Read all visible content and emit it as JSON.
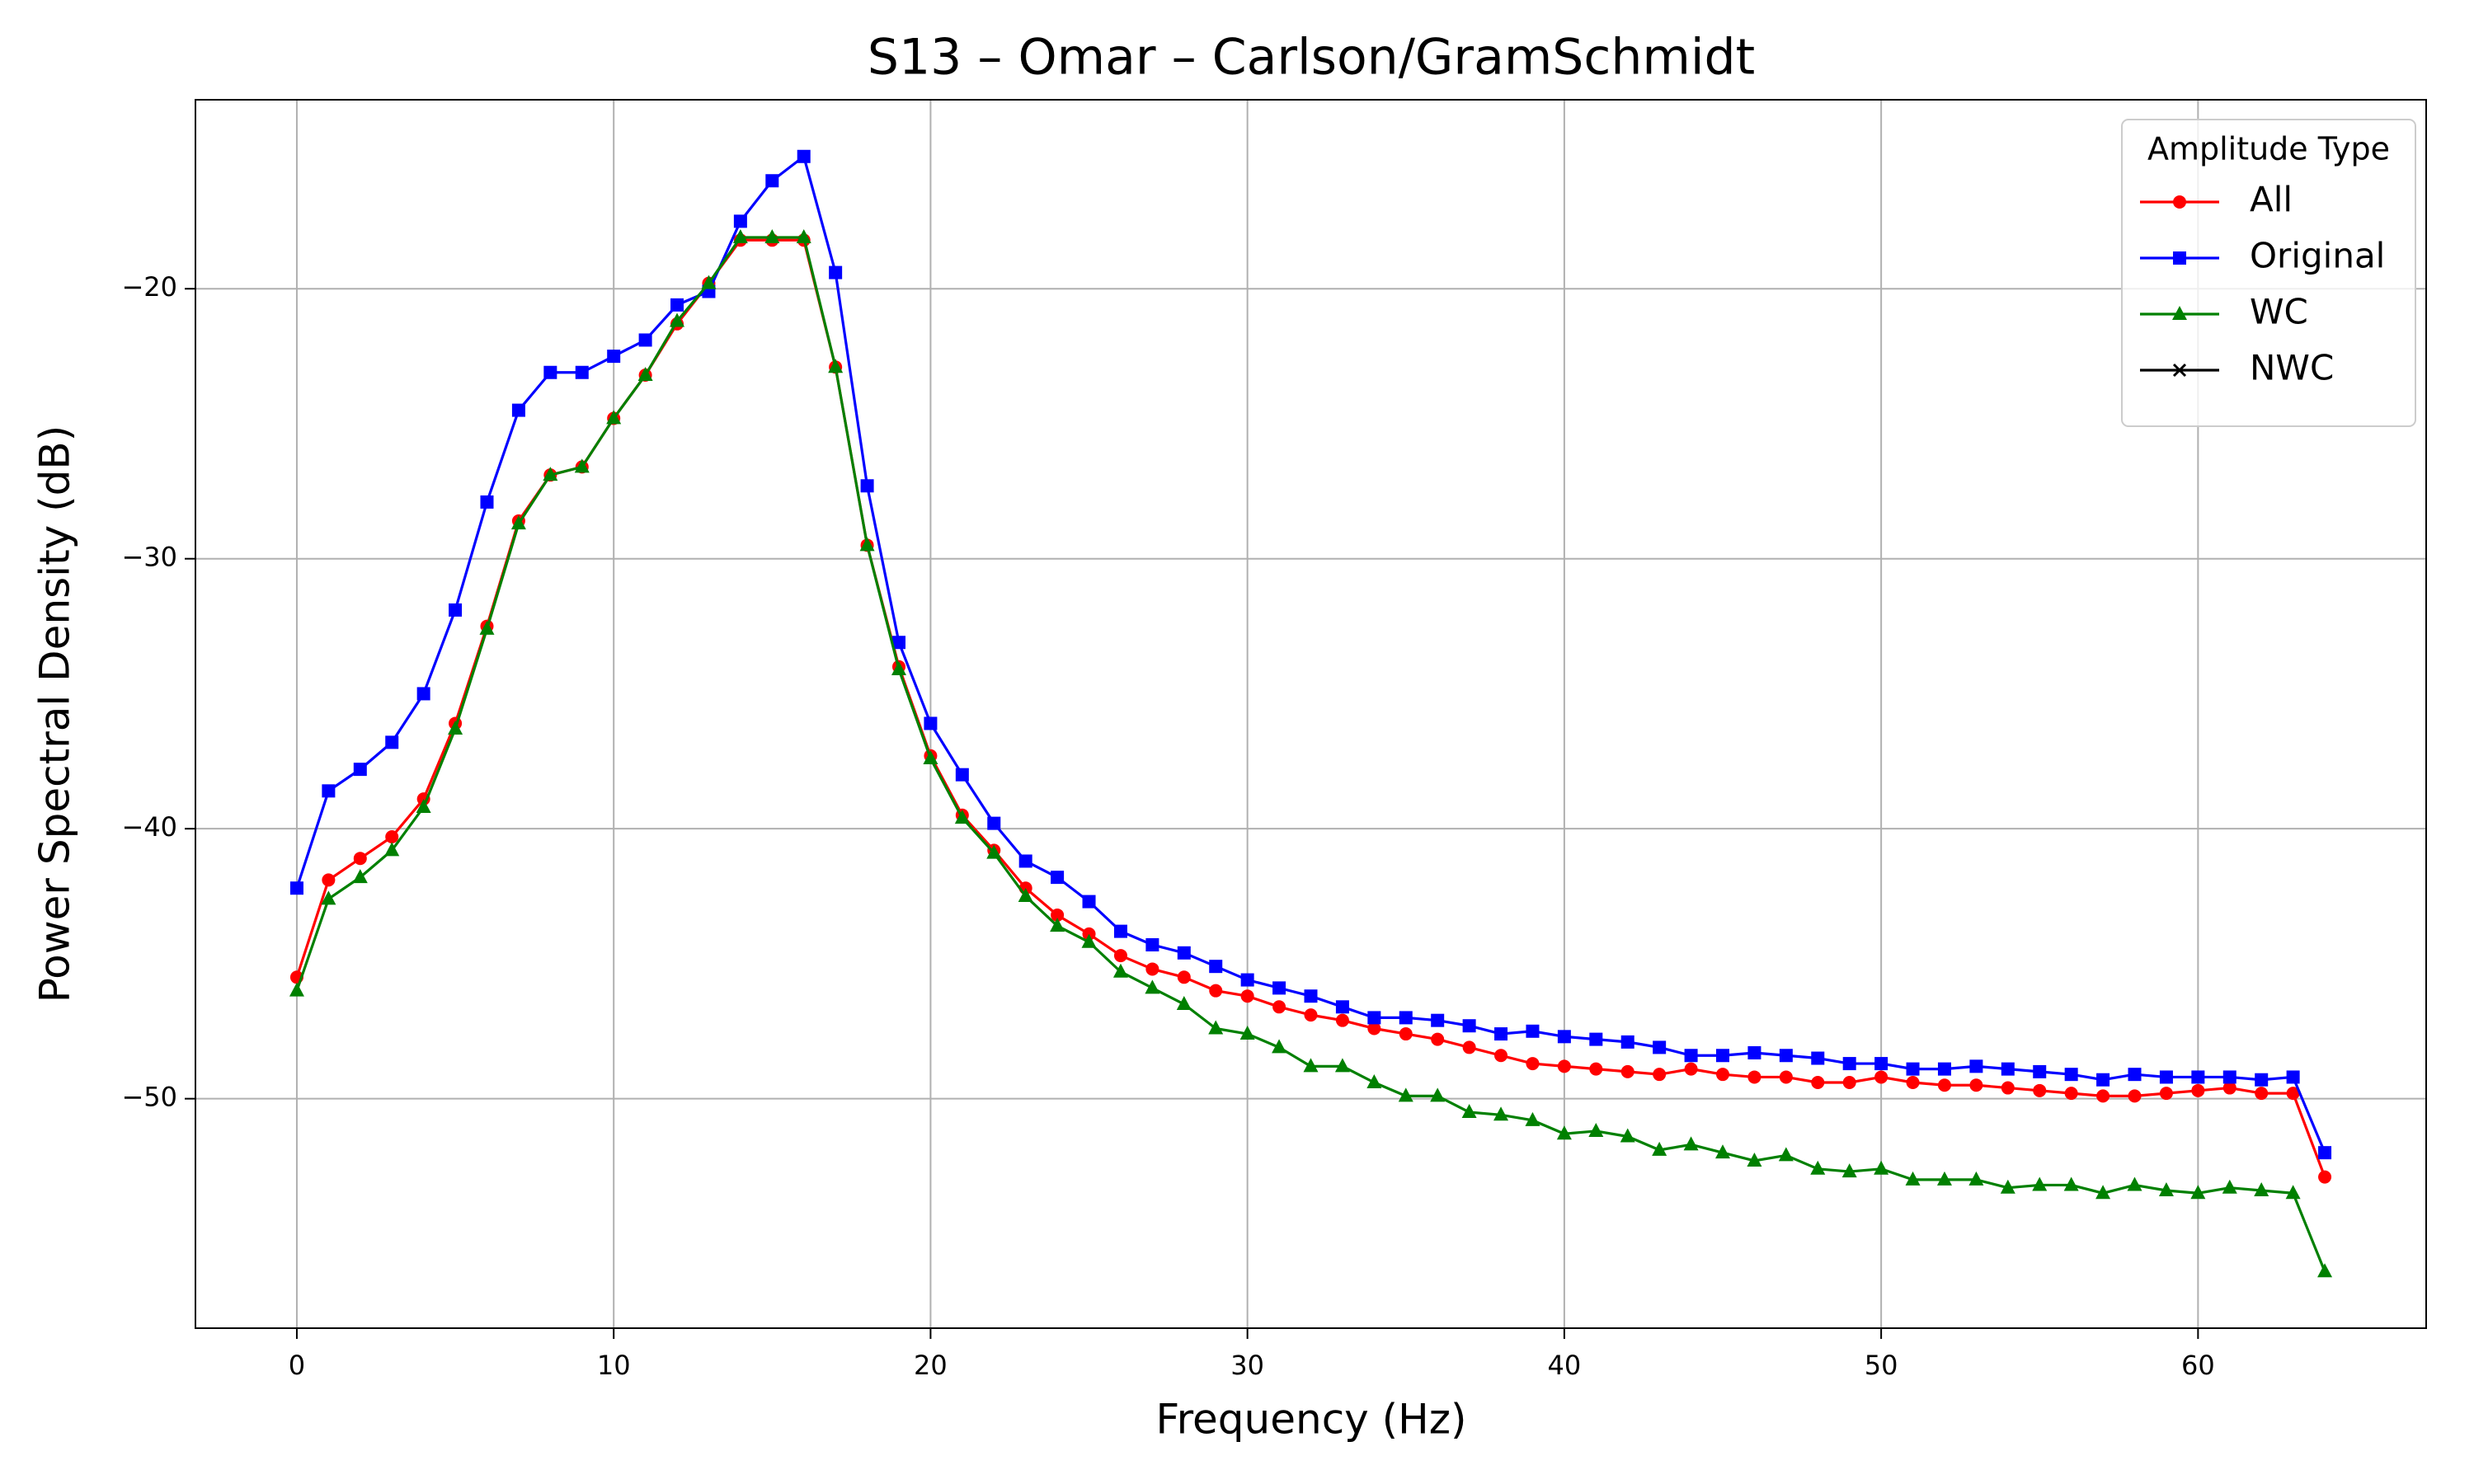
{
  "chart_data": {
    "type": "line",
    "title": "S13 – Omar – Carlson/GramSchmidt",
    "x_label": "Frequency (Hz)",
    "y_label": "Power Spectral Density (dB)",
    "x": [
      0,
      1,
      2,
      3,
      4,
      5,
      6,
      7,
      8,
      9,
      10,
      11,
      12,
      13,
      14,
      15,
      16,
      17,
      18,
      19,
      20,
      21,
      22,
      23,
      24,
      25,
      26,
      27,
      28,
      29,
      30,
      31,
      32,
      33,
      34,
      35,
      36,
      37,
      38,
      39,
      40,
      41,
      42,
      43,
      44,
      45,
      46,
      47,
      48,
      49,
      50,
      51,
      52,
      53,
      54,
      55,
      56,
      57,
      58,
      59,
      60,
      61,
      62,
      63,
      64
    ],
    "series": [
      {
        "name": "All",
        "color": "#ff0000",
        "marker": "o",
        "values": [
          -45.5,
          -41.9,
          -41.1,
          -40.3,
          -38.9,
          -36.1,
          -32.5,
          -28.6,
          -26.9,
          -26.6,
          -24.8,
          -23.2,
          -21.3,
          -19.8,
          -18.2,
          -18.2,
          -18.2,
          -22.9,
          -29.5,
          -34.0,
          -37.3,
          -39.5,
          -40.8,
          -42.2,
          -43.2,
          -43.9,
          -44.7,
          -45.2,
          -45.5,
          -46.0,
          -46.2,
          -46.6,
          -46.9,
          -47.1,
          -47.4,
          -47.6,
          -47.8,
          -48.1,
          -48.4,
          -48.7,
          -48.8,
          -48.9,
          -49.0,
          -49.1,
          -48.9,
          -49.1,
          -49.2,
          -49.2,
          -49.4,
          -49.4,
          -49.2,
          -49.4,
          -49.5,
          -49.5,
          -49.6,
          -49.7,
          -49.8,
          -49.9,
          -49.9,
          -49.8,
          -49.7,
          -49.6,
          -49.8,
          -49.8,
          -52.9
        ]
      },
      {
        "name": "Original",
        "color": "#0000ff",
        "marker": "s",
        "values": [
          -42.2,
          -38.6,
          -37.8,
          -36.8,
          -35.0,
          -31.9,
          -27.9,
          -24.5,
          -23.1,
          -23.1,
          -22.5,
          -21.9,
          -20.6,
          -20.1,
          -17.5,
          -16.0,
          -15.1,
          -19.4,
          -27.3,
          -33.1,
          -36.1,
          -38.0,
          -39.8,
          -41.2,
          -41.8,
          -42.7,
          -43.8,
          -44.3,
          -44.6,
          -45.1,
          -45.6,
          -45.9,
          -46.2,
          -46.6,
          -47.0,
          -47.0,
          -47.1,
          -47.3,
          -47.6,
          -47.5,
          -47.7,
          -47.8,
          -47.9,
          -48.1,
          -48.4,
          -48.4,
          -48.3,
          -48.4,
          -48.5,
          -48.7,
          -48.7,
          -48.9,
          -48.9,
          -48.8,
          -48.9,
          -49.0,
          -49.1,
          -49.3,
          -49.1,
          -49.2,
          -49.2,
          -49.2,
          -49.3,
          -49.2,
          -52.0
        ]
      },
      {
        "name": "WC",
        "color": "#008000",
        "marker": "^",
        "values": [
          -46.0,
          -42.6,
          -41.8,
          -40.8,
          -39.2,
          -36.3,
          -32.6,
          -28.7,
          -26.9,
          -26.6,
          -24.8,
          -23.2,
          -21.2,
          -19.8,
          -18.1,
          -18.1,
          -18.1,
          -22.9,
          -29.5,
          -34.1,
          -37.4,
          -39.6,
          -40.9,
          -42.5,
          -43.6,
          -44.2,
          -45.3,
          -45.9,
          -46.5,
          -47.4,
          -47.6,
          -48.1,
          -48.8,
          -48.8,
          -49.4,
          -49.9,
          -49.9,
          -50.5,
          -50.6,
          -50.8,
          -51.3,
          -51.2,
          -51.4,
          -51.9,
          -51.7,
          -52.0,
          -52.3,
          -52.1,
          -52.6,
          -52.7,
          -52.6,
          -53.0,
          -53.0,
          -53.0,
          -53.3,
          -53.2,
          -53.2,
          -53.5,
          -53.2,
          -53.4,
          -53.5,
          -53.3,
          -53.4,
          -53.5,
          -56.4
        ]
      },
      {
        "name": "NWC",
        "color": "#000000",
        "marker": "x",
        "values": [
          null,
          null,
          null,
          null,
          null,
          null,
          null,
          null,
          null,
          null,
          null,
          null,
          null,
          null,
          null,
          null,
          null,
          null,
          null,
          null,
          null,
          null,
          null,
          null,
          null,
          null,
          null,
          null,
          null,
          null,
          null,
          null,
          null,
          null,
          null,
          null,
          null,
          null,
          null,
          null,
          null,
          null,
          null,
          null,
          null,
          null,
          null,
          null,
          null,
          null,
          null,
          null,
          null,
          null,
          null,
          null,
          null,
          null,
          null,
          null,
          null,
          null,
          null,
          null,
          null
        ]
      }
    ],
    "legend_title": "Amplitude Type",
    "legend": "upper right",
    "grid": true,
    "xlim": [
      -3.2,
      67.2
    ],
    "ylim": [
      -58.5,
      -13.0
    ],
    "xticks": [
      0,
      10,
      20,
      30,
      40,
      50,
      60
    ],
    "yticks": [
      {
        "value": -50,
        "label": "−50"
      },
      {
        "value": -40,
        "label": "−40"
      },
      {
        "value": -30,
        "label": "−30"
      },
      {
        "value": -20,
        "label": "−20"
      }
    ]
  }
}
